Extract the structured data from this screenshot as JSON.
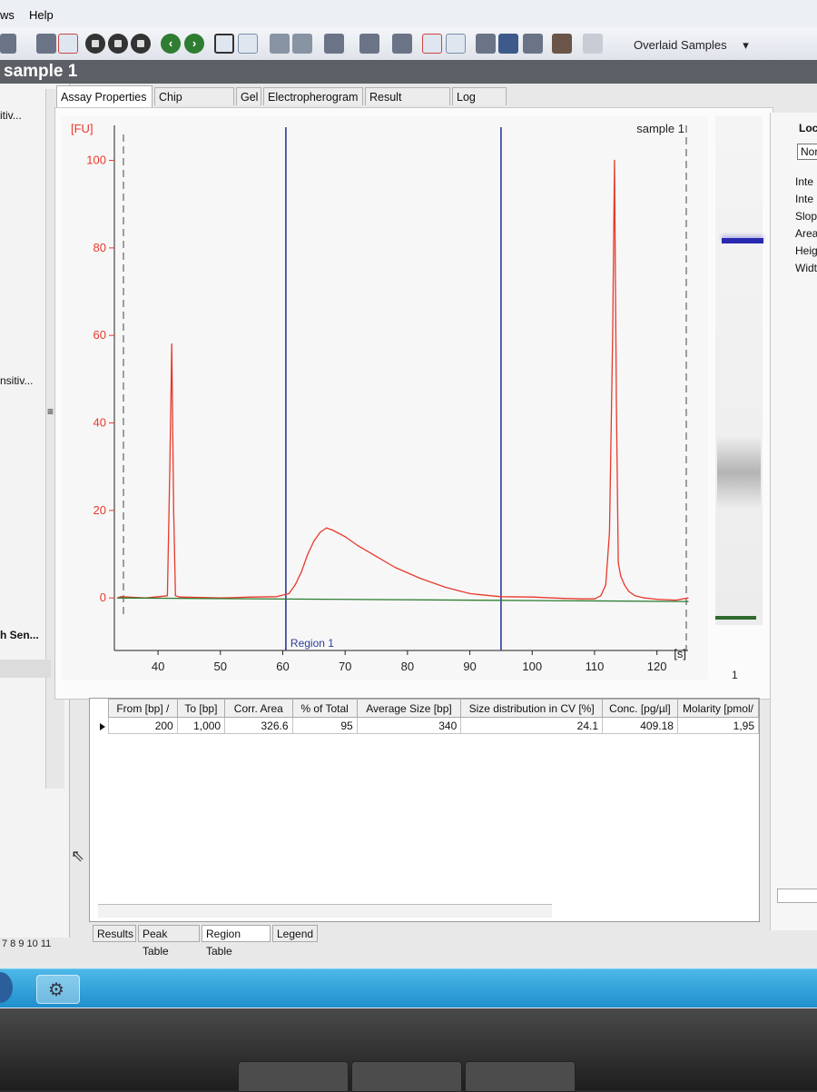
{
  "menu": {
    "windows_label": "ws",
    "help_label": "Help"
  },
  "toolbar": {
    "overlaid_label": "Overlaid Samples",
    "dropdown_arrow": "▾"
  },
  "window": {
    "title": "sample 1"
  },
  "left_panel": {
    "items": [
      "itiv...",
      "nsitiv...",
      "h Sen..."
    ],
    "scroll_grip": "≡"
  },
  "tabs": [
    "Assay Properties",
    "Chip Summary",
    "Gel",
    "Electropherogram",
    "Result Flagging",
    "Log Book"
  ],
  "chart_data": {
    "type": "line",
    "title": "sample 1",
    "ylabel": "[FU]",
    "xlabel": "[s]",
    "xlim": [
      33,
      125
    ],
    "ylim": [
      -12,
      108
    ],
    "xticks": [
      40,
      50,
      60,
      70,
      80,
      90,
      100,
      110,
      120
    ],
    "yticks": [
      0,
      20,
      40,
      60,
      80,
      100
    ],
    "grid": false,
    "series": [
      {
        "color": "#e8392b",
        "x": [
          33.5,
          34,
          38,
          41.5,
          41.9,
          42.2,
          42.5,
          42.8,
          43.5,
          50,
          55,
          59,
          61,
          62,
          63,
          64,
          65,
          66,
          67,
          68,
          70,
          72,
          75,
          78,
          82,
          86,
          90,
          92,
          95,
          100,
          105,
          108,
          110,
          111,
          111.8,
          112.4,
          112.9,
          113.2,
          113.5,
          113.8,
          114.2,
          114.8,
          115.5,
          116.5,
          118,
          120,
          123,
          125
        ],
        "y": [
          0,
          0.3,
          0,
          0.5,
          30,
          58,
          20,
          0.5,
          0.2,
          0,
          0.2,
          0.3,
          1,
          3,
          6,
          10,
          13,
          15,
          16,
          15.5,
          14,
          12,
          9.5,
          7,
          4.5,
          2.5,
          1,
          0.7,
          0.3,
          0.2,
          -0.1,
          -0.2,
          -0.2,
          0.5,
          3,
          15,
          60,
          100,
          45,
          8,
          5,
          3,
          1.5,
          0.5,
          0,
          -0.3,
          -0.5,
          0
        ]
      },
      {
        "color": "#2e7d32",
        "x": [
          33.5,
          125
        ],
        "y": [
          0,
          -0.8
        ]
      }
    ],
    "markers": [
      {
        "x": 60.5,
        "color": "#2e3c9c",
        "label": "Region 1"
      },
      {
        "x": 95,
        "color": "#2e3c9c",
        "label": ""
      }
    ]
  },
  "gel": {
    "lane_label": "1"
  },
  "right_panel": {
    "header": "Loc",
    "dropdown": "Nor",
    "items": [
      "Inte",
      "Inte",
      "Slope",
      "Area",
      "Heigh",
      "Width"
    ]
  },
  "region_table": {
    "columns": [
      "From [bp]",
      "To [bp]",
      "Corr. Area",
      "% of Total",
      "Average Size [bp]",
      "Size distribution in CV [%]",
      "Conc. [pg/µl]",
      "Molarity [pmol/"
    ],
    "sort_glyph": "/",
    "rows": [
      [
        "200",
        "1,000",
        "326.6",
        "95",
        "340",
        "24.1",
        "409.18",
        "1,95"
      ]
    ]
  },
  "bottom_tabs": [
    "Results",
    "Peak Table",
    "Region Table",
    "Legend"
  ],
  "page_numbers": "7  8  9  10  11"
}
